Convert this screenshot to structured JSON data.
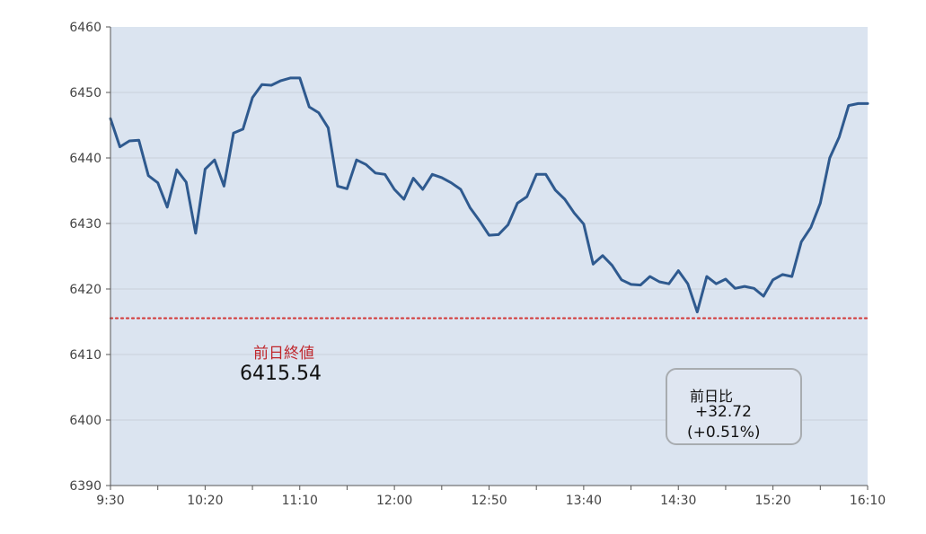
{
  "chart_data": {
    "type": "line",
    "title": "",
    "xlabel": "",
    "ylabel": "",
    "ylim": [
      6390,
      6460
    ],
    "y_ticks": [
      "6460",
      "6450",
      "6440",
      "6430",
      "6420",
      "6410",
      "6400",
      "6390"
    ],
    "x_ticks": [
      "9:30",
      "10:20",
      "11:10",
      "12:00",
      "12:50",
      "13:40",
      "14:30",
      "15:20",
      "16:10"
    ],
    "grid": true,
    "series": [
      {
        "name": "",
        "color": "#2f5a8f",
        "x": [
          "9:30",
          "9:35",
          "9:40",
          "9:45",
          "9:50",
          "9:55",
          "10:00",
          "10:05",
          "10:10",
          "10:15",
          "10:20",
          "10:25",
          "10:30",
          "10:35",
          "10:40",
          "10:45",
          "10:50",
          "10:55",
          "11:00",
          "11:05",
          "11:10",
          "11:15",
          "11:20",
          "11:25",
          "11:30",
          "11:35",
          "11:40",
          "11:45",
          "11:50",
          "11:55",
          "12:00",
          "12:05",
          "12:10",
          "12:15",
          "12:20",
          "12:25",
          "12:30",
          "12:35",
          "12:40",
          "12:45",
          "12:50",
          "12:55",
          "13:00",
          "13:05",
          "13:10",
          "13:15",
          "13:20",
          "13:25",
          "13:30",
          "13:35",
          "13:40",
          "13:45",
          "13:50",
          "13:55",
          "14:00",
          "14:05",
          "14:10",
          "14:15",
          "14:20",
          "14:25",
          "14:30",
          "14:35",
          "14:40",
          "14:45",
          "14:50",
          "14:55",
          "15:00",
          "15:05",
          "15:10",
          "15:15",
          "15:20",
          "15:25",
          "15:30",
          "15:35",
          "15:40",
          "15:45",
          "15:50",
          "15:55",
          "16:00",
          "16:05",
          "16:10"
        ],
        "values": [
          6446,
          6441.7,
          6442.6,
          6442.7,
          6437.3,
          6436.2,
          6432.5,
          6438.2,
          6436.3,
          6428.5,
          6438.3,
          6439.7,
          6435.7,
          6443.8,
          6444.4,
          6449.2,
          6451.2,
          6451.1,
          6451.8,
          6452.2,
          6452.2,
          6447.8,
          6446.9,
          6444.6,
          6435.7,
          6435.3,
          6439.7,
          6439.0,
          6437.7,
          6437.5,
          6435.2,
          6433.7,
          6436.9,
          6435.2,
          6437.5,
          6437.0,
          6436.2,
          6435.2,
          6432.4,
          6430.4,
          6428.2,
          6428.3,
          6429.8,
          6433.1,
          6434.1,
          6437.5,
          6437.5,
          6435.1,
          6433.7,
          6431.6,
          6429.9,
          6423.8,
          6425.1,
          6423.6,
          6421.4,
          6420.7,
          6420.6,
          6421.9,
          6421.1,
          6420.8,
          6422.8,
          6420.8,
          6416.5,
          6421.9,
          6420.8,
          6421.5,
          6420.1,
          6420.4,
          6420.1,
          6418.9,
          6421.4,
          6422.2,
          6421.9,
          6427.2,
          6429.4,
          6433.1,
          6440.0,
          6443.2,
          6448.0,
          6448.3,
          6448.3
        ]
      }
    ],
    "reference_line": {
      "value": 6415.54,
      "color": "#d33c3c",
      "style": "dotted"
    },
    "prev_close": {
      "label": "前日終値",
      "value": "6415.54"
    },
    "change": {
      "title": "前日比",
      "absolute": "+32.72",
      "percent": "(+0.51%)"
    },
    "colors": {
      "plot_background": "#dbe4f0",
      "grid": "#c9d0da",
      "axis": "#555555"
    }
  }
}
